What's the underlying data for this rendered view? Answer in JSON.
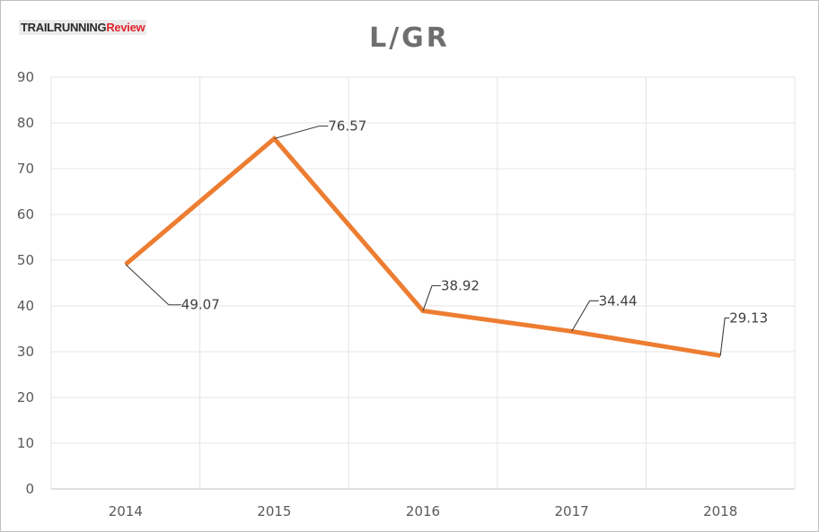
{
  "logo": {
    "part1": "TRAILRUNNING",
    "part2": "Review"
  },
  "chart_data": {
    "type": "line",
    "title": "L/GR",
    "categories": [
      "2014",
      "2015",
      "2016",
      "2017",
      "2018"
    ],
    "series": [
      {
        "values": [
          49.07,
          76.57,
          38.92,
          34.44,
          29.13
        ],
        "color": "#ed7d31"
      }
    ],
    "data_labels": [
      "49.07",
      "76.57",
      "38.92",
      "34.44",
      "29.13"
    ],
    "ylim": [
      0,
      90
    ],
    "yticks": [
      0,
      10,
      20,
      30,
      40,
      50,
      60,
      70,
      80,
      90
    ],
    "xlabel": "",
    "ylabel": "",
    "grid": true,
    "legend": "none"
  }
}
